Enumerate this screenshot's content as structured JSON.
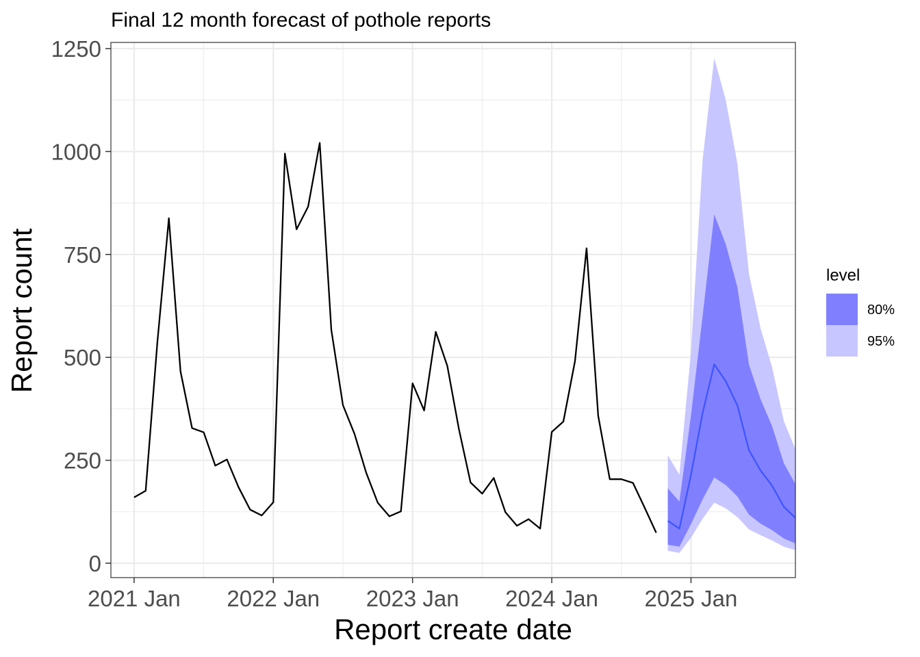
{
  "chart_data": {
    "type": "line",
    "title": "Final 12 month forecast of pothole reports",
    "xlabel": "Report create date",
    "ylabel": "Report count",
    "ylim": [
      -35,
      1265
    ],
    "xlim": [
      "2020-11",
      "2025-10"
    ],
    "y_ticks": [
      0,
      250,
      500,
      750,
      1000,
      1250
    ],
    "x_ticks": [
      {
        "date": "2021-01",
        "label": "2021 Jan"
      },
      {
        "date": "2022-01",
        "label": "2022 Jan"
      },
      {
        "date": "2023-01",
        "label": "2023 Jan"
      },
      {
        "date": "2024-01",
        "label": "2024 Jan"
      },
      {
        "date": "2025-01",
        "label": "2025 Jan"
      }
    ],
    "grid": true,
    "legend": {
      "title": "level",
      "placement": "right",
      "entries": [
        {
          "label": "80%",
          "color": "#8080ff"
        },
        {
          "label": "95%",
          "color": "#c8c6ff"
        }
      ]
    },
    "colors": {
      "history_line": "#000000",
      "forecast_line": "#3f55ff",
      "band_80": "#8080ff",
      "band_95": "#c8c6ff",
      "grid": "#ebebeb"
    },
    "history": {
      "start": "2021-01",
      "values": [
        160,
        176,
        535,
        838,
        466,
        328,
        318,
        237,
        252,
        185,
        130,
        116,
        148,
        995,
        811,
        866,
        1021,
        567,
        384,
        314,
        220,
        147,
        114,
        126,
        437,
        371,
        562,
        479,
        325,
        196,
        169,
        207,
        124,
        91,
        107,
        84,
        319,
        344,
        491,
        765,
        358,
        204,
        204,
        195,
        135,
        74
      ]
    },
    "forecast": {
      "start": "2024-11",
      "mean": [
        103,
        84,
        215,
        365,
        483,
        442,
        383,
        274,
        225,
        188,
        137,
        110
      ],
      "lo80": [
        45,
        40,
        95,
        155,
        208,
        190,
        162,
        118,
        96,
        80,
        60,
        48
      ],
      "hi80": [
        182,
        150,
        360,
        600,
        847,
        775,
        670,
        482,
        398,
        332,
        243,
        192
      ],
      "lo95": [
        30,
        25,
        62,
        108,
        147,
        133,
        112,
        82,
        68,
        55,
        40,
        32
      ],
      "hi95": [
        262,
        215,
        515,
        980,
        1227,
        1125,
        970,
        703,
        570,
        475,
        345,
        277
      ]
    }
  }
}
